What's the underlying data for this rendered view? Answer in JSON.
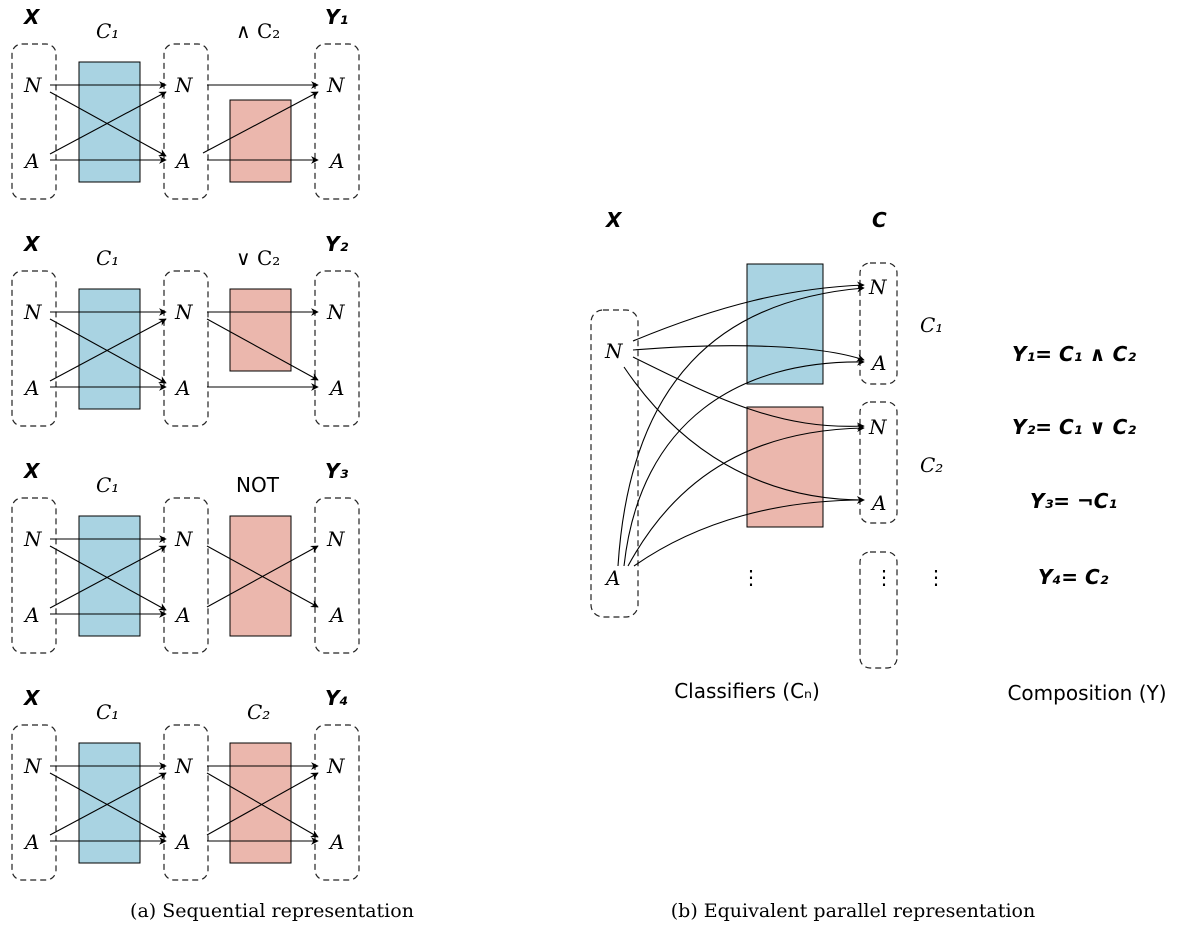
{
  "colors": {
    "classifier1": "#a9d3e2",
    "classifier2": "#ebb7ad",
    "stroke": "#000000"
  },
  "labels": {
    "x": "X",
    "c": "C",
    "normal": "N",
    "anomaly": "A",
    "ellipsis": "⋮"
  },
  "sequential": {
    "caption": "(a) Sequential representation",
    "rows": [
      {
        "first_op": "C₁",
        "second_op": "∧ C₂",
        "output": "Y₁"
      },
      {
        "first_op": "C₁",
        "second_op": "∨ C₂",
        "output": "Y₂"
      },
      {
        "first_op": "C₁",
        "second_op": "NOT",
        "output": "Y₃"
      },
      {
        "first_op": "C₁",
        "second_op": "C₂",
        "output": "Y₄"
      }
    ]
  },
  "parallel": {
    "caption": "(b) Equivalent parallel representation",
    "classifier_labels": [
      "C₁",
      "C₂"
    ],
    "classifiers_caption": "Classifiers (Cₙ)",
    "composition_caption": "Composition (Y)",
    "compositions": [
      "Y₁= C₁ ∧ C₂",
      "Y₂= C₁ ∨ C₂",
      "Y₃= ¬C₁",
      "Y₄= C₂"
    ]
  }
}
